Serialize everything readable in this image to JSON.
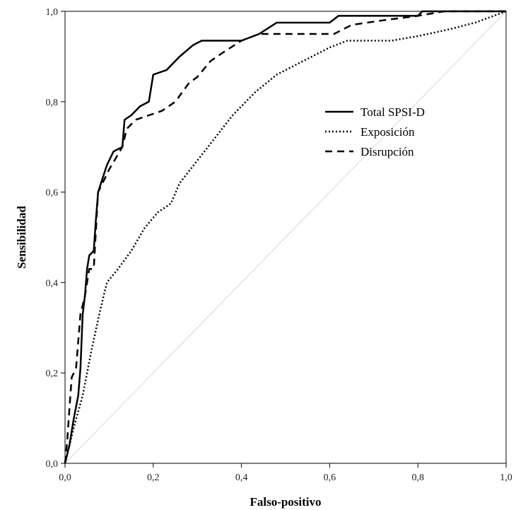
{
  "chart_data": {
    "type": "line",
    "xlabel": "Falso-positivo",
    "ylabel": "Sensibilidad",
    "xlim": [
      0,
      1
    ],
    "ylim": [
      0,
      1
    ],
    "x_ticks": [
      "0,0",
      "0,2",
      "0,4",
      "0,6",
      "0,8",
      "1,0"
    ],
    "y_ticks": [
      "0,0",
      "0,2",
      "0,4",
      "0,6",
      "0,8",
      "1,0"
    ],
    "grid": false,
    "legend_position": "right-middle",
    "series": [
      {
        "name": "Total SPSI-D",
        "style": "solid",
        "color": "#000000",
        "points": [
          [
            0,
            0
          ],
          [
            0.01,
            0.04
          ],
          [
            0.02,
            0.1
          ],
          [
            0.03,
            0.15
          ],
          [
            0.035,
            0.21
          ],
          [
            0.04,
            0.33
          ],
          [
            0.045,
            0.37
          ],
          [
            0.05,
            0.43
          ],
          [
            0.055,
            0.46
          ],
          [
            0.065,
            0.47
          ],
          [
            0.07,
            0.54
          ],
          [
            0.075,
            0.6
          ],
          [
            0.085,
            0.63
          ],
          [
            0.095,
            0.66
          ],
          [
            0.11,
            0.69
          ],
          [
            0.13,
            0.7
          ],
          [
            0.135,
            0.76
          ],
          [
            0.15,
            0.77
          ],
          [
            0.17,
            0.79
          ],
          [
            0.19,
            0.8
          ],
          [
            0.2,
            0.86
          ],
          [
            0.23,
            0.87
          ],
          [
            0.26,
            0.9
          ],
          [
            0.29,
            0.925
          ],
          [
            0.31,
            0.935
          ],
          [
            0.4,
            0.935
          ],
          [
            0.44,
            0.95
          ],
          [
            0.48,
            0.975
          ],
          [
            0.6,
            0.975
          ],
          [
            0.62,
            0.99
          ],
          [
            0.8,
            0.99
          ],
          [
            0.81,
            1.0
          ],
          [
            1.0,
            1.0
          ]
        ]
      },
      {
        "name": "Exposición",
        "style": "dotted",
        "color": "#000000",
        "points": [
          [
            0,
            0
          ],
          [
            0.02,
            0.08
          ],
          [
            0.04,
            0.15
          ],
          [
            0.06,
            0.25
          ],
          [
            0.08,
            0.34
          ],
          [
            0.095,
            0.4
          ],
          [
            0.12,
            0.43
          ],
          [
            0.15,
            0.47
          ],
          [
            0.18,
            0.52
          ],
          [
            0.21,
            0.555
          ],
          [
            0.24,
            0.575
          ],
          [
            0.26,
            0.62
          ],
          [
            0.3,
            0.67
          ],
          [
            0.34,
            0.72
          ],
          [
            0.38,
            0.77
          ],
          [
            0.43,
            0.82
          ],
          [
            0.48,
            0.86
          ],
          [
            0.52,
            0.88
          ],
          [
            0.56,
            0.9
          ],
          [
            0.6,
            0.92
          ],
          [
            0.64,
            0.935
          ],
          [
            0.74,
            0.935
          ],
          [
            0.8,
            0.945
          ],
          [
            0.87,
            0.96
          ],
          [
            0.93,
            0.975
          ],
          [
            1.0,
            1.0
          ]
        ]
      },
      {
        "name": "Disrupción",
        "style": "dashed",
        "color": "#000000",
        "points": [
          [
            0,
            0
          ],
          [
            0.005,
            0.05
          ],
          [
            0.01,
            0.12
          ],
          [
            0.015,
            0.19
          ],
          [
            0.025,
            0.21
          ],
          [
            0.035,
            0.33
          ],
          [
            0.045,
            0.37
          ],
          [
            0.055,
            0.43
          ],
          [
            0.065,
            0.43
          ],
          [
            0.075,
            0.6
          ],
          [
            0.09,
            0.63
          ],
          [
            0.1,
            0.65
          ],
          [
            0.13,
            0.7
          ],
          [
            0.14,
            0.74
          ],
          [
            0.16,
            0.76
          ],
          [
            0.19,
            0.77
          ],
          [
            0.22,
            0.78
          ],
          [
            0.25,
            0.8
          ],
          [
            0.28,
            0.84
          ],
          [
            0.3,
            0.855
          ],
          [
            0.33,
            0.89
          ],
          [
            0.36,
            0.91
          ],
          [
            0.4,
            0.935
          ],
          [
            0.44,
            0.95
          ],
          [
            0.61,
            0.95
          ],
          [
            0.65,
            0.97
          ],
          [
            0.72,
            0.98
          ],
          [
            0.8,
            0.99
          ],
          [
            0.86,
            1.0
          ],
          [
            1.0,
            1.0
          ]
        ]
      }
    ]
  }
}
